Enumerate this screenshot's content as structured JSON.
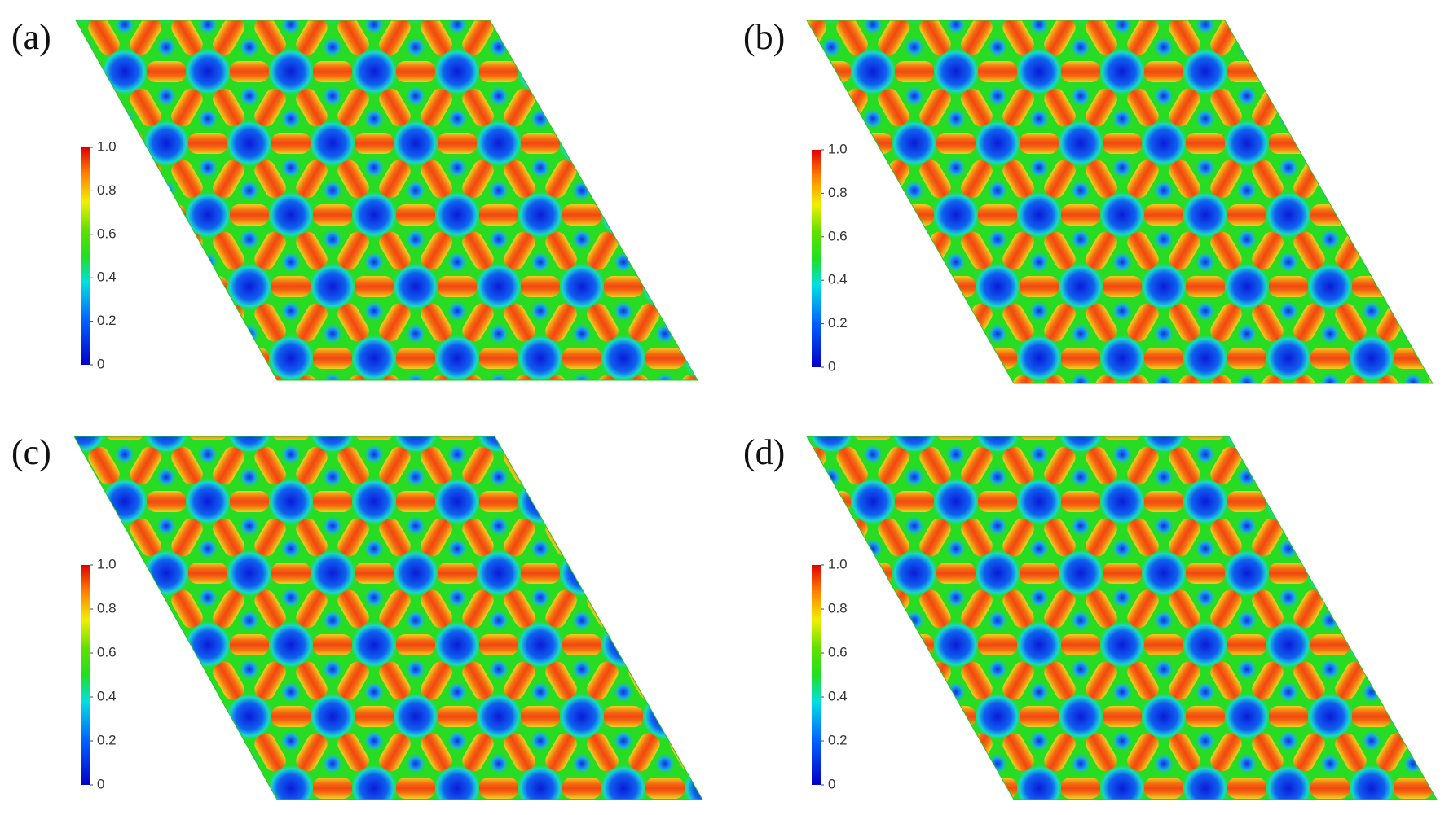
{
  "panels": [
    {
      "label": "(a)",
      "colorbar": {
        "lim": [
          0,
          1
        ],
        "ticks": [
          0,
          0.2,
          0.4,
          0.6,
          0.8,
          {
            "value": 1,
            "label": "1.0"
          }
        ]
      }
    },
    {
      "label": "(b)",
      "colorbar": {
        "lim": [
          0,
          1
        ],
        "ticks": [
          0,
          0.2,
          0.4,
          0.6,
          0.8,
          {
            "value": 1,
            "label": "1.0"
          }
        ]
      }
    },
    {
      "label": "(c)",
      "colorbar": {
        "lim": [
          0,
          1
        ],
        "ticks": [
          0,
          0.2,
          0.4,
          0.6,
          0.8,
          {
            "value": 1,
            "label": "1.0"
          }
        ]
      }
    },
    {
      "label": "(d)",
      "colorbar": {
        "lim": [
          0,
          1
        ],
        "ticks": [
          0,
          0.2,
          0.4,
          0.6,
          0.8,
          {
            "value": 1,
            "label": "1.0"
          }
        ]
      }
    }
  ]
}
